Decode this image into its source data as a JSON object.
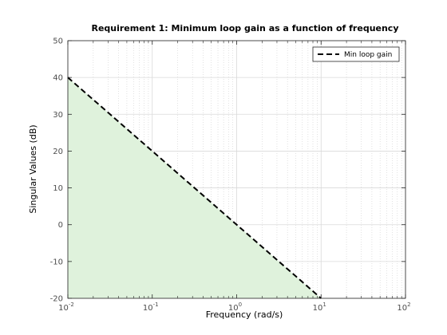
{
  "chart_data": {
    "type": "area",
    "title": "Requirement 1: Minimum loop gain as a function of frequency",
    "xlabel": "Frequency (rad/s)",
    "ylabel": "Singular Values (dB)",
    "xscale": "log",
    "xlim": [
      0.01,
      100
    ],
    "ylim": [
      -20,
      50
    ],
    "x_ticks": [
      0.01,
      0.1,
      1,
      10,
      100
    ],
    "x_tick_labels": [
      {
        "base": "10",
        "exp": "-2"
      },
      {
        "base": "10",
        "exp": "-1"
      },
      {
        "base": "10",
        "exp": "0"
      },
      {
        "base": "10",
        "exp": "1"
      },
      {
        "base": "10",
        "exp": "2"
      }
    ],
    "y_ticks": [
      -20,
      -10,
      0,
      10,
      20,
      30,
      40,
      50
    ],
    "grid": true,
    "minor_grid": true,
    "legend_position": "top-right",
    "series": [
      {
        "name": "Min loop gain",
        "style": "dashed",
        "color": "#000000",
        "x": [
          0.01,
          10
        ],
        "y": [
          40,
          -20
        ]
      }
    ],
    "shaded_region": {
      "description_color": "#dff2dc",
      "x": [
        0.01,
        10,
        100
      ],
      "y_upper": [
        40,
        -20,
        -20
      ],
      "y_lower": -20
    }
  }
}
